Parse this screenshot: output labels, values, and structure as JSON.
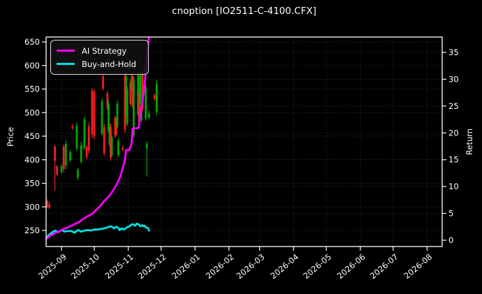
{
  "title": "cnoption [IO2511-C-4100.CFX]",
  "legend": {
    "items": [
      {
        "label": "AI Strategy",
        "color": "#ff00ff"
      },
      {
        "label": "Buy-and-Hold",
        "color": "#00e0e0"
      }
    ]
  },
  "axes": {
    "price_label": "Price",
    "return_label": "Return"
  },
  "colors": {
    "background": "#000000",
    "text": "#ffffff",
    "spine": "#ffffff",
    "grid": "#3a3a3a",
    "candle_up": "#00a800",
    "candle_down": "#f02020",
    "ai_strategy": "#ff00ff",
    "buy_and_hold": "#00e0e0"
  },
  "chart_data": {
    "type": "candlestick+line",
    "title": "cnoption [IO2511-C-4100.CFX]",
    "xlabel": "",
    "ylabel_left": "Price",
    "ylabel_right": "Return",
    "grid": true,
    "legend_position": "upper left",
    "price_axis": {
      "ticks": [
        250,
        300,
        350,
        400,
        450,
        500,
        550,
        600,
        650
      ],
      "lim": [
        228,
        661
      ]
    },
    "return_axis": {
      "ticks": [
        0,
        5,
        10,
        15,
        20,
        25,
        30,
        35
      ],
      "lim": [
        -1.2,
        39.1
      ]
    },
    "x_ticks": [
      "2025-09",
      "2025-10",
      "2025-11",
      "2025-12",
      "2026-01",
      "2026-02",
      "2026-03",
      "2026-04",
      "2026-05",
      "2026-06",
      "2026-07",
      "2026-08"
    ],
    "x_range": [
      "2025-08-18",
      "2026-08-14"
    ],
    "candles_columns": [
      "date",
      "open",
      "high",
      "low",
      "close"
    ],
    "candles": [
      [
        "2025-08-19",
        312,
        316,
        297,
        300
      ],
      [
        "2025-08-21",
        306,
        311,
        295,
        298
      ],
      [
        "2025-08-26",
        428,
        431,
        334,
        398
      ],
      [
        "2025-08-28",
        386,
        389,
        365,
        369
      ],
      [
        "2025-09-01",
        374,
        391,
        370,
        386
      ],
      [
        "2025-09-03",
        428,
        432,
        373,
        380
      ],
      [
        "2025-09-05",
        388,
        441,
        380,
        434
      ],
      [
        "2025-09-09",
        399,
        420,
        395,
        416
      ],
      [
        "2025-09-11",
        470,
        476,
        464,
        467
      ],
      [
        "2025-09-15",
        424,
        479,
        419,
        472
      ],
      [
        "2025-09-16",
        362,
        383,
        357,
        379
      ],
      [
        "2025-09-19",
        396,
        438,
        392,
        431
      ],
      [
        "2025-09-22",
        425,
        492,
        421,
        486
      ],
      [
        "2025-09-24",
        427,
        431,
        401,
        406
      ],
      [
        "2025-09-26",
        471,
        479,
        413,
        419
      ],
      [
        "2025-09-29",
        547,
        553,
        446,
        454
      ],
      [
        "2025-10-01",
        544,
        550,
        443,
        450
      ],
      [
        "2025-10-08",
        456,
        531,
        451,
        524
      ],
      [
        "2025-10-09",
        577,
        581,
        547,
        551
      ],
      [
        "2025-10-10",
        469,
        477,
        408,
        414
      ],
      [
        "2025-10-13",
        540,
        546,
        505,
        510
      ],
      [
        "2025-10-14",
        461,
        526,
        457,
        519
      ],
      [
        "2025-10-15",
        432,
        477,
        428,
        470
      ],
      [
        "2025-10-16",
        470,
        477,
        398,
        404
      ],
      [
        "2025-10-17",
        410,
        454,
        406,
        448
      ],
      [
        "2025-10-20",
        489,
        494,
        446,
        452
      ],
      [
        "2025-10-21",
        486,
        490,
        450,
        455
      ],
      [
        "2025-10-22",
        470,
        526,
        466,
        519
      ],
      [
        "2025-10-23",
        410,
        446,
        406,
        440
      ],
      [
        "2025-10-27",
        425,
        430,
        418,
        421
      ],
      [
        "2025-10-29",
        578,
        586,
        457,
        464
      ],
      [
        "2025-10-30",
        500,
        583,
        494,
        576
      ],
      [
        "2025-10-31",
        476,
        555,
        471,
        549
      ],
      [
        "2025-11-03",
        564,
        569,
        514,
        519
      ],
      [
        "2025-11-04",
        551,
        580,
        547,
        574
      ],
      [
        "2025-11-05",
        578,
        583,
        509,
        514
      ],
      [
        "2025-11-06",
        452,
        576,
        447,
        569
      ],
      [
        "2025-11-10",
        496,
        586,
        492,
        579
      ],
      [
        "2025-11-11",
        539,
        546,
        467,
        473
      ],
      [
        "2025-11-12",
        521,
        586,
        517,
        579
      ],
      [
        "2025-11-13",
        484,
        510,
        480,
        505
      ],
      [
        "2025-11-14",
        584,
        590,
        501,
        507
      ],
      [
        "2025-11-17",
        488,
        561,
        483,
        554
      ],
      [
        "2025-11-18",
        424,
        439,
        364,
        433
      ],
      [
        "2025-11-20",
        490,
        505,
        486,
        498
      ],
      [
        "2025-11-25",
        537,
        540,
        526,
        529
      ],
      [
        "2025-11-27",
        502,
        569,
        494,
        561
      ]
    ],
    "series": [
      {
        "name": "AI Strategy",
        "axis": "return",
        "color": "#ff00ff",
        "points": [
          [
            "2025-08-18",
            0.2
          ],
          [
            "2025-08-22",
            0.9
          ],
          [
            "2025-08-26",
            1.3
          ],
          [
            "2025-08-29",
            1.6
          ],
          [
            "2025-09-02",
            2.0
          ],
          [
            "2025-09-06",
            2.3
          ],
          [
            "2025-09-10",
            2.7
          ],
          [
            "2025-09-13",
            3.0
          ],
          [
            "2025-09-17",
            3.4
          ],
          [
            "2025-09-21",
            4.0
          ],
          [
            "2025-09-25",
            4.5
          ],
          [
            "2025-09-29",
            4.9
          ],
          [
            "2025-10-03",
            5.7
          ],
          [
            "2025-10-07",
            6.5
          ],
          [
            "2025-10-10",
            7.3
          ],
          [
            "2025-10-14",
            8.1
          ],
          [
            "2025-10-18",
            9.2
          ],
          [
            "2025-10-22",
            10.6
          ],
          [
            "2025-10-25",
            12.0
          ],
          [
            "2025-10-27",
            13.5
          ],
          [
            "2025-10-29",
            15.0
          ],
          [
            "2025-10-30",
            16.8
          ],
          [
            "2025-11-02",
            16.8
          ],
          [
            "2025-11-04",
            18.0
          ],
          [
            "2025-11-05",
            20.8
          ],
          [
            "2025-11-10",
            20.9
          ],
          [
            "2025-11-11",
            21.5
          ],
          [
            "2025-11-12",
            23.9
          ],
          [
            "2025-11-14",
            25.9
          ],
          [
            "2025-11-16",
            29.1
          ],
          [
            "2025-11-17",
            31.7
          ],
          [
            "2025-11-18",
            34.3
          ],
          [
            "2025-11-20",
            38.0
          ]
        ]
      },
      {
        "name": "Buy-and-Hold",
        "axis": "return",
        "color": "#00e0e0",
        "points": [
          [
            "2025-08-18",
            0.3
          ],
          [
            "2025-08-20",
            0.9
          ],
          [
            "2025-08-23",
            1.4
          ],
          [
            "2025-08-26",
            1.8
          ],
          [
            "2025-08-29",
            1.5
          ],
          [
            "2025-09-01",
            1.9
          ],
          [
            "2025-09-04",
            1.6
          ],
          [
            "2025-09-06",
            1.7
          ],
          [
            "2025-09-10",
            1.7
          ],
          [
            "2025-09-13",
            1.4
          ],
          [
            "2025-09-16",
            1.9
          ],
          [
            "2025-09-19",
            1.6
          ],
          [
            "2025-09-22",
            1.8
          ],
          [
            "2025-09-25",
            1.9
          ],
          [
            "2025-09-28",
            1.8
          ],
          [
            "2025-10-01",
            2.0
          ],
          [
            "2025-10-04",
            2.0
          ],
          [
            "2025-10-07",
            2.1
          ],
          [
            "2025-10-10",
            2.2
          ],
          [
            "2025-10-13",
            2.4
          ],
          [
            "2025-10-16",
            2.6
          ],
          [
            "2025-10-18",
            2.4
          ],
          [
            "2025-10-19",
            2.2
          ],
          [
            "2025-10-21",
            2.5
          ],
          [
            "2025-10-23",
            2.3
          ],
          [
            "2025-10-24",
            1.9
          ],
          [
            "2025-10-26",
            2.2
          ],
          [
            "2025-10-28",
            2.0
          ],
          [
            "2025-10-31",
            2.4
          ],
          [
            "2025-11-02",
            2.6
          ],
          [
            "2025-11-04",
            2.9
          ],
          [
            "2025-11-05",
            3.0
          ],
          [
            "2025-11-07",
            2.7
          ],
          [
            "2025-11-09",
            3.1
          ],
          [
            "2025-11-11",
            2.9
          ],
          [
            "2025-11-12",
            2.6
          ],
          [
            "2025-11-14",
            2.8
          ],
          [
            "2025-11-15",
            2.6
          ],
          [
            "2025-11-16",
            2.7
          ],
          [
            "2025-11-17",
            2.4
          ],
          [
            "2025-11-19",
            2.3
          ],
          [
            "2025-11-20",
            1.8
          ]
        ]
      }
    ]
  }
}
